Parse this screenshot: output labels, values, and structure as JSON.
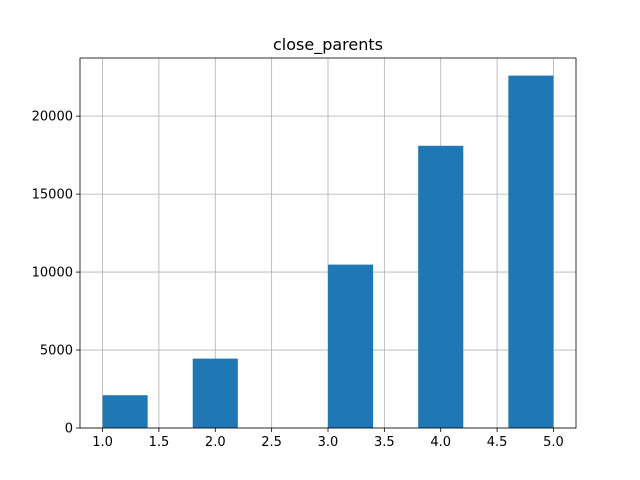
{
  "chart_data": {
    "type": "bar",
    "title": "close_parents",
    "xlabel": "",
    "ylabel": "",
    "grid": true,
    "bar_color": "#1f77b4",
    "bins": [
      {
        "x0": 1.0,
        "x1": 1.4,
        "value": 2100
      },
      {
        "x0": 1.4,
        "x1": 1.8,
        "value": 0
      },
      {
        "x0": 1.8,
        "x1": 2.2,
        "value": 4450
      },
      {
        "x0": 2.2,
        "x1": 2.6,
        "value": 0
      },
      {
        "x0": 2.6,
        "x1": 3.0,
        "value": 0
      },
      {
        "x0": 3.0,
        "x1": 3.4,
        "value": 10480
      },
      {
        "x0": 3.4,
        "x1": 3.8,
        "value": 0
      },
      {
        "x0": 3.8,
        "x1": 4.2,
        "value": 18100
      },
      {
        "x0": 4.2,
        "x1": 4.6,
        "value": 0
      },
      {
        "x0": 4.6,
        "x1": 5.0,
        "value": 22600
      }
    ],
    "xlim": [
      0.8,
      5.2
    ],
    "ylim": [
      0,
      23730
    ],
    "xticks": [
      1.0,
      1.5,
      2.0,
      2.5,
      3.0,
      3.5,
      4.0,
      4.5,
      5.0
    ],
    "xtick_labels": [
      "1.0",
      "1.5",
      "2.0",
      "2.5",
      "3.0",
      "3.5",
      "4.0",
      "4.5",
      "5.0"
    ],
    "yticks": [
      0,
      5000,
      10000,
      15000,
      20000
    ],
    "ytick_labels": [
      "0",
      "5000",
      "10000",
      "15000",
      "20000"
    ]
  }
}
